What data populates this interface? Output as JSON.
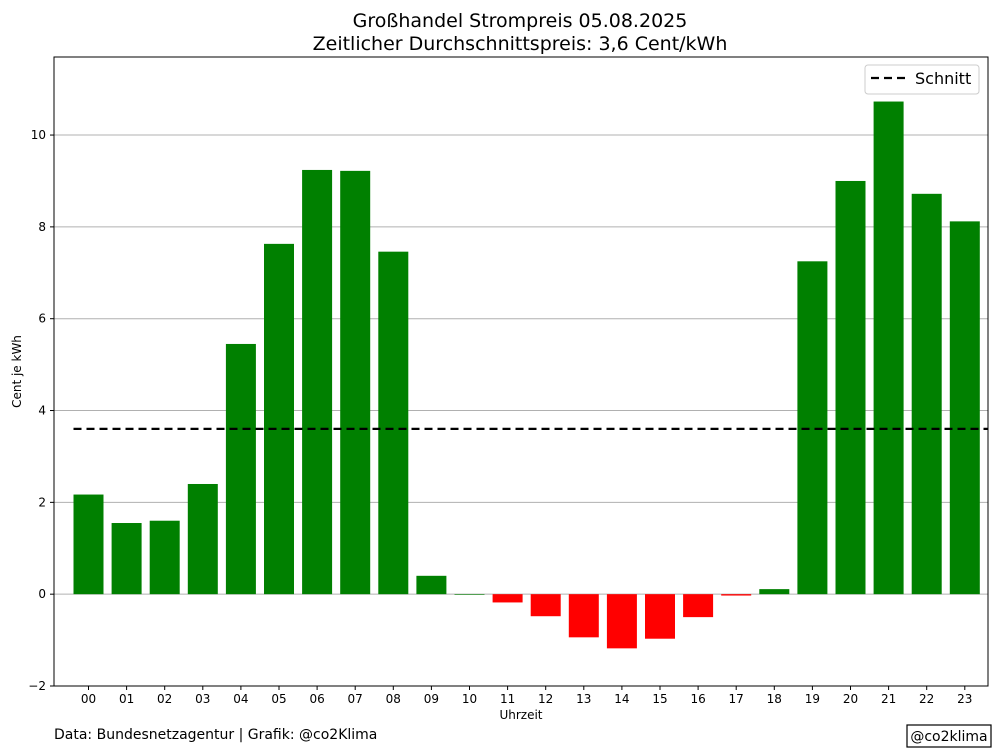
{
  "chart_data": {
    "type": "bar",
    "title": "Großhandel Strompreis 05.08.2025",
    "subtitle": "Zeitlicher Durchschnittspreis: 3,6 Cent/kWh",
    "xlabel": "Uhrzeit",
    "ylabel": "Cent je kWh",
    "ylim": [
      -2,
      11.7
    ],
    "yticks": [
      -2,
      0,
      2,
      4,
      6,
      8,
      10
    ],
    "grid": "horizontal",
    "categories": [
      "00",
      "01",
      "02",
      "03",
      "04",
      "05",
      "06",
      "07",
      "08",
      "09",
      "10",
      "11",
      "12",
      "13",
      "14",
      "15",
      "16",
      "17",
      "18",
      "19",
      "20",
      "21",
      "22",
      "23"
    ],
    "values": [
      2.17,
      1.55,
      1.6,
      2.4,
      5.45,
      7.63,
      9.24,
      9.22,
      7.46,
      0.4,
      0.0,
      -0.18,
      -0.48,
      -0.94,
      -1.18,
      -0.97,
      -0.5,
      -0.03,
      0.11,
      7.25,
      9.0,
      10.73,
      8.72,
      8.12
    ],
    "average": 3.6,
    "legend": {
      "position": "top-right",
      "entries": [
        "Schnitt"
      ]
    },
    "colors": {
      "positive": "#008000",
      "negative": "#ff0000",
      "average_line": "#000000",
      "grid": "#b0b0b0"
    }
  },
  "footer": {
    "source": "Data: Bundesnetzagentur | Grafik: @co2Klima",
    "badge": "@co2klima"
  }
}
